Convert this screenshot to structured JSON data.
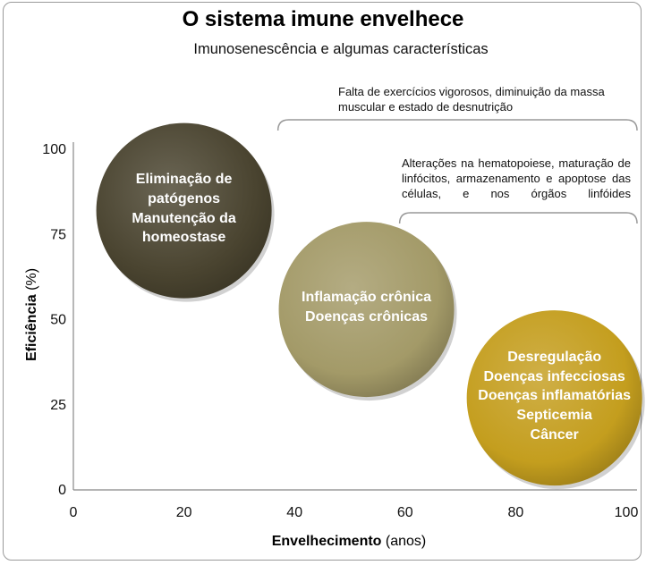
{
  "chart_data": {
    "type": "scatter",
    "title": "O sistema imune envelhece",
    "subtitle": "Imunosenescência  e algumas características",
    "xlabel_bold": "Envelhecimento",
    "xlabel_unit": "(anos)",
    "ylabel_bold": "Eficiência",
    "ylabel_unit": "(%)",
    "xlim": [
      0,
      100
    ],
    "ylim": [
      0,
      100
    ],
    "x_ticks": [
      0,
      20,
      40,
      60,
      80,
      100
    ],
    "y_ticks": [
      0,
      25,
      50,
      75,
      100
    ],
    "grid": false,
    "points": [
      {
        "x": 20,
        "y": 82,
        "color": "#4a4430",
        "lines": [
          "Eliminação de",
          "patógenos",
          "Manutenção da",
          "homeostase"
        ]
      },
      {
        "x": 53,
        "y": 53,
        "color": "#a39a68",
        "lines": [
          "Inflamação crônica",
          "Doenças crônicas"
        ]
      },
      {
        "x": 87,
        "y": 27,
        "color": "#c49e1e",
        "lines": [
          "Desregulação",
          "Doenças infecciosas",
          "Doenças inflamatórias",
          "Septicemia",
          "Câncer"
        ]
      }
    ],
    "annotations": [
      {
        "text": "Falta de exercícios vigorosos, diminuição da massa muscular e estado de desnutrição",
        "from_x": 37,
        "to_x": 100
      },
      {
        "text": "Alterações na hematopoiese, maturação de linfócitos, armazenamento e apoptose das células, e nos órgãos linfóides",
        "from_x": 59,
        "to_x": 100
      }
    ]
  }
}
